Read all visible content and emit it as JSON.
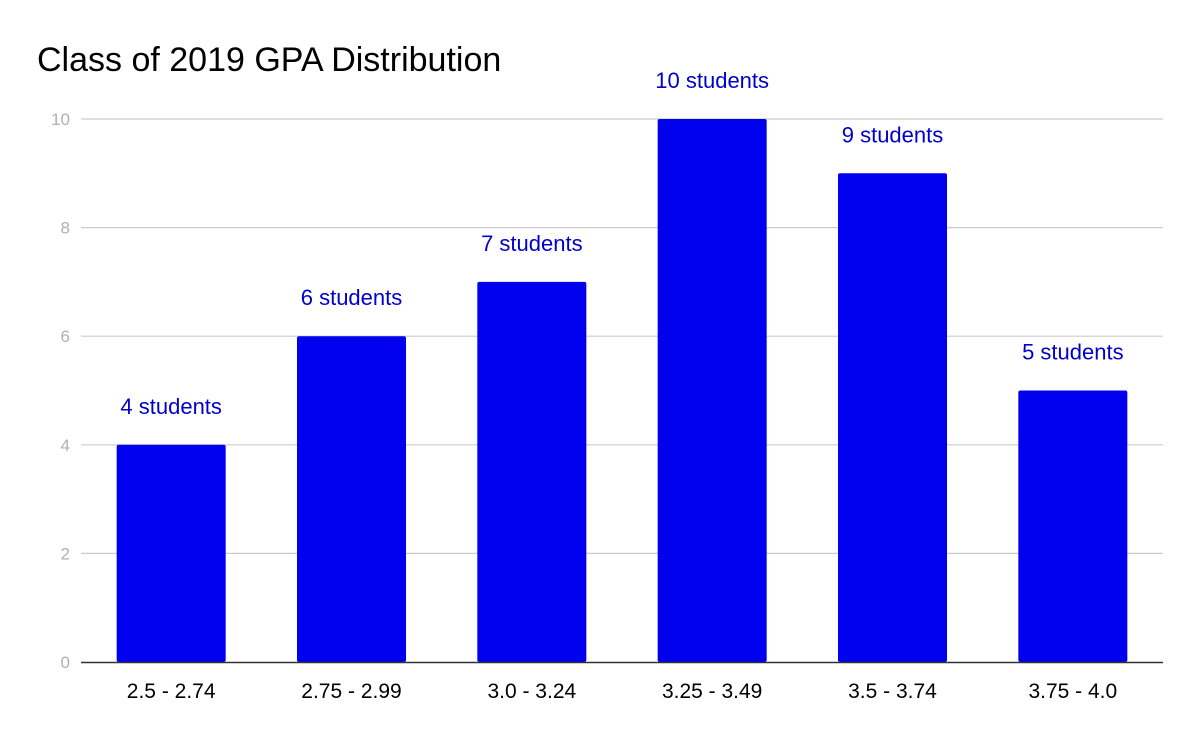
{
  "chart_data": {
    "type": "bar",
    "title": "Class of 2019 GPA Distribution",
    "xlabel": "",
    "ylabel": "",
    "categories": [
      "2.5 - 2.74",
      "2.75 - 2.99",
      "3.0 - 3.24",
      "3.25 - 3.49",
      "3.5 - 3.74",
      "3.75 - 4.0"
    ],
    "values": [
      4,
      6,
      7,
      10,
      9,
      5
    ],
    "data_labels": [
      "4 students",
      "6 students",
      "7 students",
      "10 students",
      "9 students",
      "5 students"
    ],
    "ylim": [
      0,
      10
    ],
    "yticks": [
      0,
      2,
      4,
      6,
      8,
      10
    ],
    "grid": true,
    "legend": "none",
    "bar_color": "#0000ee",
    "label_color": "#0000cc"
  }
}
